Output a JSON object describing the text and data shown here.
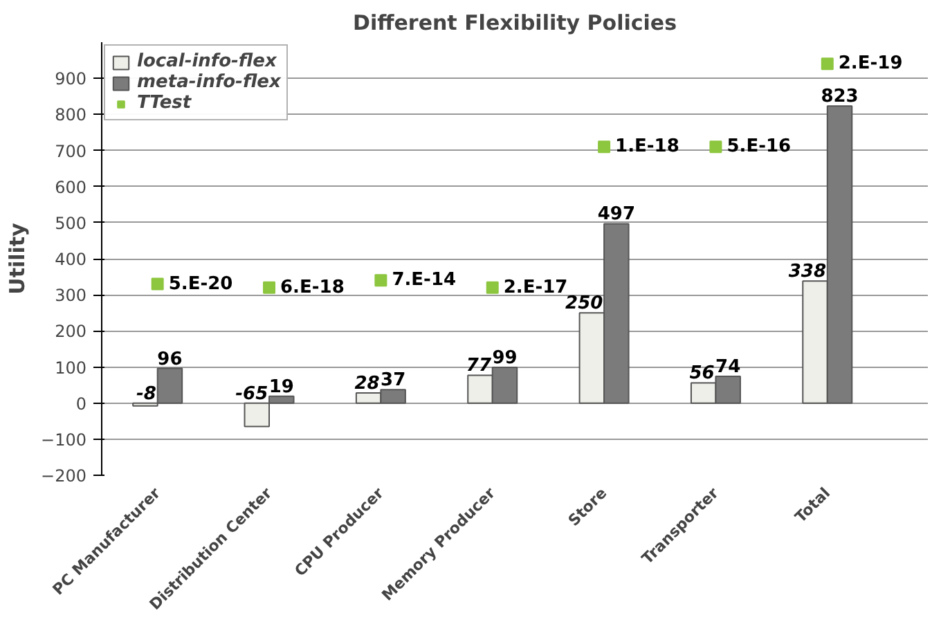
{
  "chart_data": {
    "type": "bar",
    "title": "Different Flexibility Policies",
    "ylabel": "Utility",
    "categories": [
      "PC Manufacturer",
      "Distribution Center",
      "CPU Producer",
      "Memory Producer",
      "Store",
      "Transporter",
      "Total"
    ],
    "series": [
      {
        "name": "local-info-flex",
        "color": "#efefe9",
        "values": [
          -8,
          -65,
          28,
          77,
          250,
          56,
          338
        ]
      },
      {
        "name": "meta-info-flex",
        "color": "#7b7b7b",
        "values": [
          96,
          19,
          37,
          99,
          497,
          74,
          823
        ]
      },
      {
        "name": "TTest",
        "type": "scatter",
        "marker": "square",
        "color": "#8dc63f",
        "x": [
          "PC Manufacturer",
          "Distribution Center",
          "CPU Producer",
          "Memory Producer",
          "Store",
          "Transporter",
          "Total"
        ],
        "values": [
          330,
          320,
          340,
          320,
          710,
          710,
          940
        ],
        "value_labels": [
          "5.E-20",
          "6.E-18",
          "7.E-14",
          "2.E-17",
          "1.E-18",
          "5.E-16",
          "2.E-19"
        ]
      }
    ],
    "data_labels": true,
    "ylim": [
      -200,
      1000
    ],
    "yticks": [
      -200,
      -100,
      0,
      100,
      200,
      300,
      400,
      500,
      600,
      700,
      800,
      900
    ],
    "grid": "y",
    "legend": "top left"
  }
}
